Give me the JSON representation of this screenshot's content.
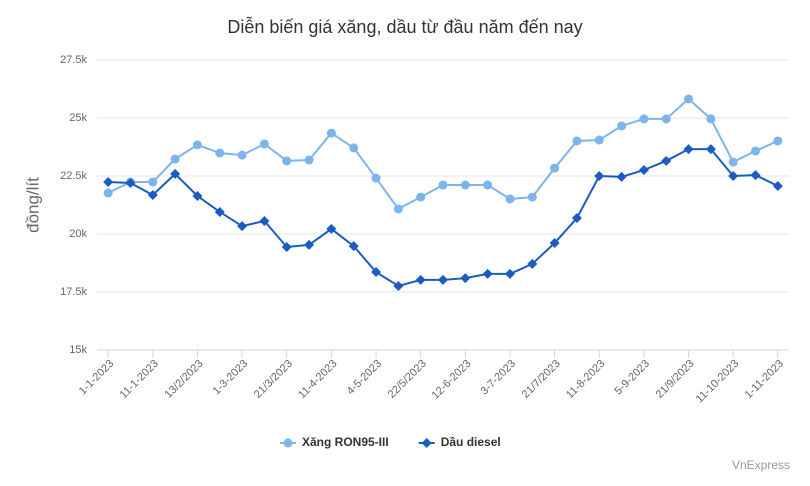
{
  "chart_data": {
    "type": "line",
    "title": "Diễn biến giá xăng, dầu từ đầu năm đến nay",
    "y_label": "đồng/lít",
    "credit": "VnExpress",
    "categories": [
      "1-1-2023",
      null,
      "11-1-2023",
      null,
      "13/2/2023",
      null,
      "1-3-2023",
      null,
      "21/3/2023",
      null,
      "11-4-2023",
      null,
      "4-5-2023",
      null,
      "22/5/2023",
      null,
      "12-6-2023",
      null,
      "3-7-2023",
      null,
      "21/7/2023",
      null,
      "11-8-2023",
      null,
      "5-9-2023",
      null,
      "21/9/2023",
      null,
      "11-10-2023",
      null,
      "1-11-2023"
    ],
    "series": [
      {
        "name": "Xăng RON95-III",
        "color": "#7cb5ec",
        "marker": "circle",
        "values": [
          21770,
          22240,
          22240,
          23230,
          23840,
          23490,
          23400,
          23880,
          23150,
          23190,
          24350,
          23710,
          22410,
          21080,
          21590,
          22110,
          22110,
          22110,
          21510,
          21590,
          22840,
          24010,
          24050,
          24660,
          24960,
          24960,
          25820,
          24960,
          23100,
          23580,
          24010
        ]
      },
      {
        "name": "Dầu diesel",
        "color": "#1a5cbf",
        "marker": "diamond",
        "values": [
          22240,
          22200,
          21680,
          22590,
          21640,
          20950,
          20340,
          20560,
          19440,
          19530,
          20220,
          19480,
          18360,
          17760,
          18020,
          18020,
          18100,
          18280,
          18280,
          18710,
          19610,
          20690,
          22500,
          22460,
          22760,
          23150,
          23660,
          23660,
          22500,
          22540,
          22070
        ]
      }
    ],
    "ylim": [
      15000,
      27500
    ],
    "yticks": [
      {
        "value": 15000,
        "label": "15k"
      },
      {
        "value": 17500,
        "label": "17.5k"
      },
      {
        "value": 20000,
        "label": "20k"
      },
      {
        "value": 22500,
        "label": "22.5k"
      },
      {
        "value": 25000,
        "label": "25k"
      },
      {
        "value": 27500,
        "label": "27.5k"
      }
    ],
    "grid": true,
    "legend": "bottom"
  }
}
